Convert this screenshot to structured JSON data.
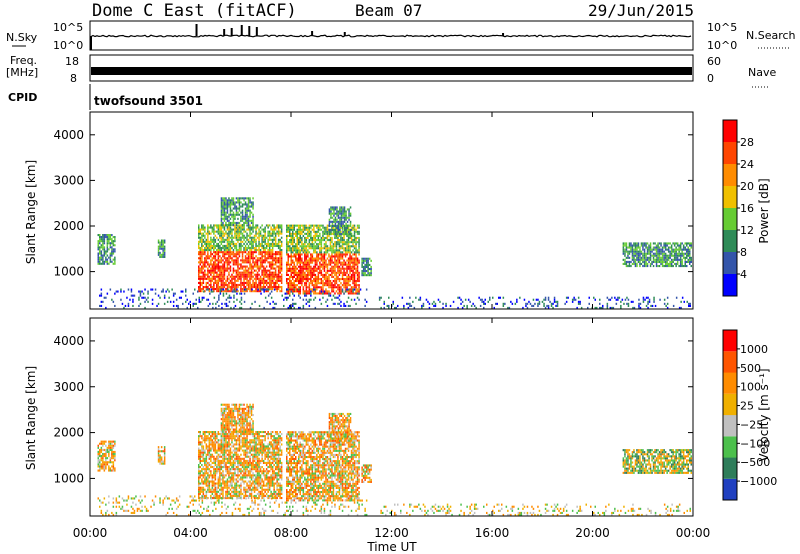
{
  "chart_data": {
    "type": "heatmap",
    "title": "Dome C East (fitACF)",
    "beam": "Beam 07",
    "date": "29/Jun/2015",
    "xlabel": "Time UT",
    "x_ticks": [
      "00:00",
      "04:00",
      "08:00",
      "12:00",
      "16:00",
      "20:00",
      "00:00"
    ],
    "xlim": [
      "00:00",
      "24:00"
    ],
    "nsky": {
      "left_label": "N.Sky",
      "right_label": "N.Search",
      "left_ticks": [
        "10^5",
        "10^0"
      ],
      "right_ticks": [
        "10^5",
        "10^0"
      ]
    },
    "freq": {
      "left_label_1": "Freq.",
      "left_label_2": "[MHz]",
      "right_label": "Nave",
      "left_ticks": [
        "18",
        "8"
      ],
      "right_ticks": [
        "60",
        "0"
      ]
    },
    "cpid": {
      "label": "CPID",
      "value": "twofsound 3501"
    },
    "panels": [
      {
        "quantity": "power",
        "ylabel": "Slant Range [km]",
        "y_ticks": [
          "4000",
          "3000",
          "2000",
          "1000"
        ],
        "ylim": [
          180,
          4500
        ],
        "colorbar_label": "Power [dB]",
        "colorbar_ticks": [
          "28",
          "24",
          "20",
          "16",
          "12",
          "8",
          "4"
        ]
      },
      {
        "quantity": "velocity",
        "ylabel": "Slant Range [km]",
        "y_ticks": [
          "4000",
          "3000",
          "2000",
          "1000"
        ],
        "ylim": [
          180,
          4500
        ],
        "colorbar_label": "Velocity [m s⁻¹]",
        "colorbar_ticks": [
          "1000",
          "500",
          "100",
          "25",
          "−25",
          "−100",
          "−500",
          "−1000"
        ]
      }
    ],
    "power_colors": [
      "#0000ff",
      "#3355aa",
      "#2e8b57",
      "#66cc33",
      "#f0c000",
      "#ff8c00",
      "#ff4500",
      "#ff0000"
    ],
    "velocity_colors": [
      "#2040c0",
      "#2e7d5a",
      "#4cc04c",
      "#c0c0c0",
      "#f0b000",
      "#ff8c00",
      "#ff5500",
      "#ff0000"
    ],
    "echo_regions": [
      {
        "t0": 0.3,
        "t1": 1.0,
        "r0": 1150,
        "r1": 1800
      },
      {
        "t0": 2.7,
        "t1": 3.0,
        "r0": 1300,
        "r1": 1700
      },
      {
        "t0": 4.3,
        "t1": 7.6,
        "r0": 550,
        "r1": 2000
      },
      {
        "t0": 5.2,
        "t1": 6.5,
        "r0": 2000,
        "r1": 2600
      },
      {
        "t0": 7.8,
        "t1": 10.7,
        "r0": 500,
        "r1": 2000
      },
      {
        "t0": 9.5,
        "t1": 10.4,
        "r0": 1800,
        "r1": 2400
      },
      {
        "t0": 10.8,
        "t1": 11.2,
        "r0": 900,
        "r1": 1300
      },
      {
        "t0": 21.2,
        "t1": 23.9,
        "r0": 1100,
        "r1": 1600
      },
      {
        "t0": 0.3,
        "t1": 11.0,
        "r0": 180,
        "r1": 600
      },
      {
        "t0": 11.5,
        "t1": 23.9,
        "r0": 180,
        "r1": 450
      }
    ]
  }
}
